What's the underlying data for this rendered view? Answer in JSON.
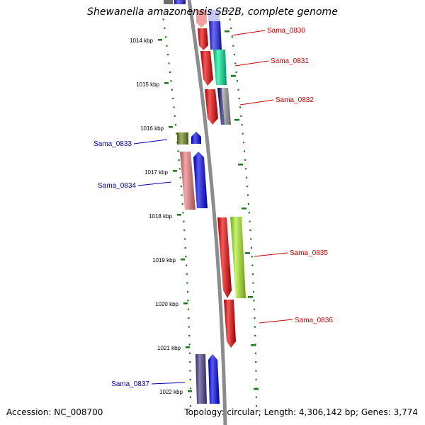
{
  "title": "Shewanella amazonensis SB2B, complete genome",
  "accession": "Accession: NC_008700",
  "topology": "Topology: circular; Length: 4,306,142 bp; Genes: 3,774",
  "scale_labels": [
    "1014 kbp",
    "1015 kbp",
    "1016 kbp",
    "1017 kbp",
    "1018 kbp",
    "1019 kbp",
    "1020 kbp",
    "1021 kbp",
    "1022 kbp"
  ],
  "genes": [
    {
      "name": "Sama_0830",
      "strand": "forward"
    },
    {
      "name": "Sama_0831",
      "strand": "forward"
    },
    {
      "name": "Sama_0832",
      "strand": "forward"
    },
    {
      "name": "Sama_0833",
      "strand": "reverse"
    },
    {
      "name": "Sama_0834",
      "strand": "reverse"
    },
    {
      "name": "Sama_0835",
      "strand": "forward"
    },
    {
      "name": "Sama_0836",
      "strand": "forward"
    },
    {
      "name": "Sama_0837",
      "strand": "reverse"
    }
  ],
  "colors": {
    "backbone": "#8c8c8c",
    "ticks": "#1a7a1a",
    "forward_label": "#cc0000",
    "reverse_label": "#0000aa",
    "cds": "#ee0000",
    "gene": "#0000ee"
  }
}
